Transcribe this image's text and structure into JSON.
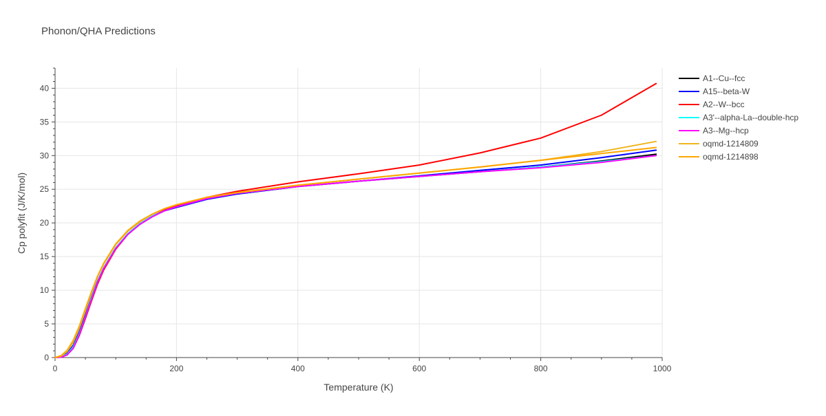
{
  "chart_data": {
    "type": "line",
    "title": "Phonon/QHA Predictions",
    "xlabel": "Temperature (K)",
    "ylabel": "Cp polyfit (J/K/mol)",
    "xlim": [
      0,
      1000
    ],
    "ylim": [
      0,
      43
    ],
    "x_ticks": [
      0,
      200,
      400,
      600,
      800,
      1000
    ],
    "y_ticks": [
      0,
      5,
      10,
      15,
      20,
      25,
      30,
      35,
      40
    ],
    "grid": true,
    "legend_position": "right",
    "x": [
      0,
      10,
      20,
      30,
      40,
      50,
      60,
      70,
      80,
      100,
      120,
      140,
      160,
      180,
      200,
      250,
      300,
      400,
      500,
      600,
      700,
      800,
      900,
      990
    ],
    "series": [
      {
        "name": "A1--Cu--fcc",
        "color": "#000000",
        "values": [
          0,
          0.1,
          0.6,
          1.8,
          3.8,
          6.3,
          8.9,
          11.3,
          13.3,
          16.3,
          18.4,
          19.9,
          21.0,
          21.8,
          22.4,
          23.6,
          24.3,
          25.4,
          26.2,
          26.9,
          27.6,
          28.3,
          29.2,
          30.2
        ]
      },
      {
        "name": "A15--beta-W",
        "color": "#0000ff",
        "values": [
          0,
          0.1,
          0.6,
          1.8,
          3.8,
          6.3,
          8.9,
          11.3,
          13.3,
          16.3,
          18.4,
          19.9,
          21.0,
          21.8,
          22.3,
          23.5,
          24.3,
          25.4,
          26.2,
          27.0,
          27.8,
          28.6,
          29.7,
          30.8
        ]
      },
      {
        "name": "A2--W--bcc",
        "color": "#ff0000",
        "values": [
          0,
          0.05,
          0.4,
          1.4,
          3.3,
          5.8,
          8.4,
          10.9,
          13.0,
          16.1,
          18.3,
          19.9,
          21.0,
          21.9,
          22.5,
          23.8,
          24.7,
          26.1,
          27.3,
          28.6,
          30.4,
          32.6,
          36.0,
          40.7
        ]
      },
      {
        "name": "A3'--alpha-La--double-hcp",
        "color": "#00ffff",
        "values": [
          0,
          0.1,
          0.5,
          1.6,
          3.6,
          6.1,
          8.8,
          11.2,
          13.3,
          16.3,
          18.4,
          19.9,
          21.0,
          21.8,
          22.4,
          23.6,
          24.4,
          25.4,
          26.2,
          26.9,
          27.6,
          28.3,
          29.1,
          30.0
        ]
      },
      {
        "name": "A3--Mg--hcp",
        "color": "#ff00ff",
        "values": [
          0,
          0.05,
          0.4,
          1.4,
          3.4,
          6.0,
          8.6,
          11.1,
          13.2,
          16.2,
          18.3,
          19.8,
          20.9,
          21.8,
          22.4,
          23.6,
          24.4,
          25.4,
          26.2,
          26.9,
          27.6,
          28.2,
          29.0,
          30.0
        ]
      },
      {
        "name": "oqmd-1214809",
        "color": "#f0b41e",
        "values": [
          0,
          0.3,
          1.1,
          2.6,
          4.7,
          7.3,
          9.8,
          12.1,
          14.0,
          16.9,
          18.9,
          20.3,
          21.3,
          22.1,
          22.7,
          23.8,
          24.5,
          25.6,
          26.5,
          27.4,
          28.3,
          29.3,
          30.6,
          32.1
        ]
      },
      {
        "name": "oqmd-1214898",
        "color": "#ffa500",
        "values": [
          0,
          0.2,
          0.9,
          2.3,
          4.4,
          7.0,
          9.6,
          12.0,
          13.9,
          16.8,
          18.8,
          20.2,
          21.3,
          22.1,
          22.7,
          23.8,
          24.5,
          25.6,
          26.5,
          27.4,
          28.3,
          29.3,
          30.3,
          31.2
        ]
      }
    ]
  }
}
